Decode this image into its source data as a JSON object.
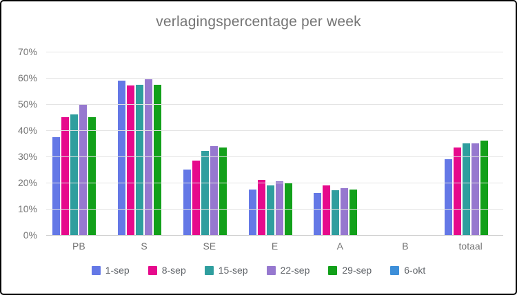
{
  "chart_data": {
    "type": "bar",
    "title": "verlagingspercentage per week",
    "categories": [
      "PB",
      "S",
      "SE",
      "E",
      "A",
      "B",
      "totaal"
    ],
    "series": [
      {
        "name": "1-sep",
        "color": "#6478e6",
        "values": [
          37.5,
          59,
          25,
          17.5,
          16,
          0,
          29
        ]
      },
      {
        "name": "8-sep",
        "color": "#e60a8c",
        "values": [
          45,
          57,
          28.5,
          21,
          19,
          0,
          33.5
        ]
      },
      {
        "name": "15-sep",
        "color": "#2f9e9e",
        "values": [
          46,
          57.5,
          32,
          19,
          17,
          0,
          35
        ]
      },
      {
        "name": "22-sep",
        "color": "#9678cf",
        "values": [
          50,
          59.5,
          34,
          20.5,
          18,
          0,
          35
        ]
      },
      {
        "name": "29-sep",
        "color": "#12a01a",
        "values": [
          45,
          57.5,
          33.5,
          20,
          17.5,
          0,
          36
        ]
      },
      {
        "name": "6-okt",
        "color": "#3d8fd9",
        "values": [
          0,
          0,
          0,
          0,
          0,
          0,
          0
        ]
      }
    ],
    "ylabel": "",
    "xlabel": "",
    "ylim": [
      0,
      70
    ],
    "ytick_step": 10,
    "ytick_labels_top_to_bottom": [
      "70%",
      "60%",
      "50%",
      "40%",
      "30%",
      "20%",
      "10%",
      "0%"
    ],
    "grid": true,
    "legend_position": "bottom",
    "colors": {
      "title_text": "#757575",
      "axis_text": "#757575",
      "legend_text": "#5f6368",
      "gridline": "#e3e3e3",
      "axis_line": "#cfcfcf",
      "background": "#ffffff",
      "frame_border": "#000000"
    }
  }
}
